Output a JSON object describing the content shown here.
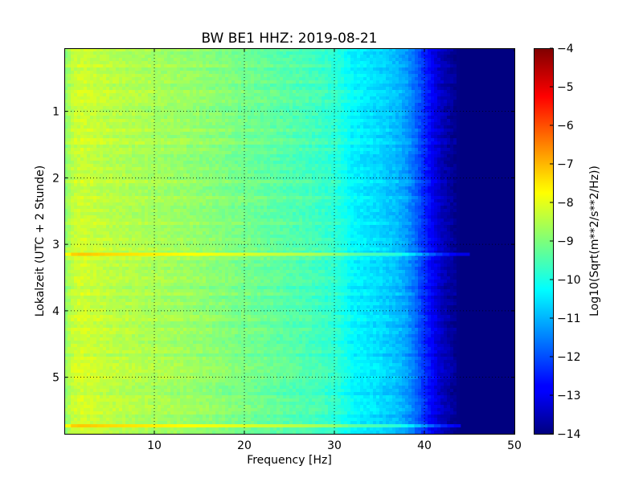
{
  "chart_data": {
    "type": "heatmap",
    "title": "BW BE1 HHZ: 2019-08-21",
    "xlabel": "Frequency [Hz]",
    "ylabel": "Lokalzeit (UTC + 2 Stunde)",
    "xlim": [
      0,
      50
    ],
    "ylim": [
      5.85,
      0.05
    ],
    "y_inverted": true,
    "x_ticks": [
      10,
      20,
      30,
      40,
      50
    ],
    "y_ticks": [
      1,
      2,
      3,
      4,
      5
    ],
    "x_tick_labels": [
      "10",
      "20",
      "30",
      "40",
      "50"
    ],
    "y_tick_labels": [
      "1",
      "2",
      "3",
      "4",
      "5"
    ],
    "grid": true,
    "colormap": "jet",
    "colorbar": {
      "label": "Log10(Sqrt(m**2/s**2/Hz))",
      "range": [
        -14,
        -4
      ],
      "ticks": [
        -4,
        -5,
        -6,
        -7,
        -8,
        -9,
        -10,
        -11,
        -12,
        -13,
        -14
      ],
      "tick_labels": [
        "−4",
        "−5",
        "−6",
        "−7",
        "−8",
        "−9",
        "−10",
        "−11",
        "−12",
        "−13",
        "−14"
      ]
    },
    "frequency_profile": {
      "frequency_hz": [
        0,
        1,
        2,
        5,
        10,
        15,
        20,
        25,
        28,
        30,
        31,
        32,
        35,
        37,
        38,
        39,
        40,
        41,
        42,
        43,
        44,
        50
      ],
      "log_psd": [
        -8.9,
        -8.3,
        -8.2,
        -8.4,
        -8.6,
        -8.8,
        -9.1,
        -9.4,
        -9.6,
        -9.8,
        -10.0,
        -10.3,
        -10.6,
        -10.9,
        -11.2,
        -11.7,
        -12.3,
        -12.9,
        -13.4,
        -13.7,
        -14.0,
        -14.0
      ]
    },
    "bright_lines": [
      {
        "time": 3.15,
        "max_frequency_hz": 45
      },
      {
        "time": 5.73,
        "max_frequency_hz": 44
      }
    ]
  }
}
